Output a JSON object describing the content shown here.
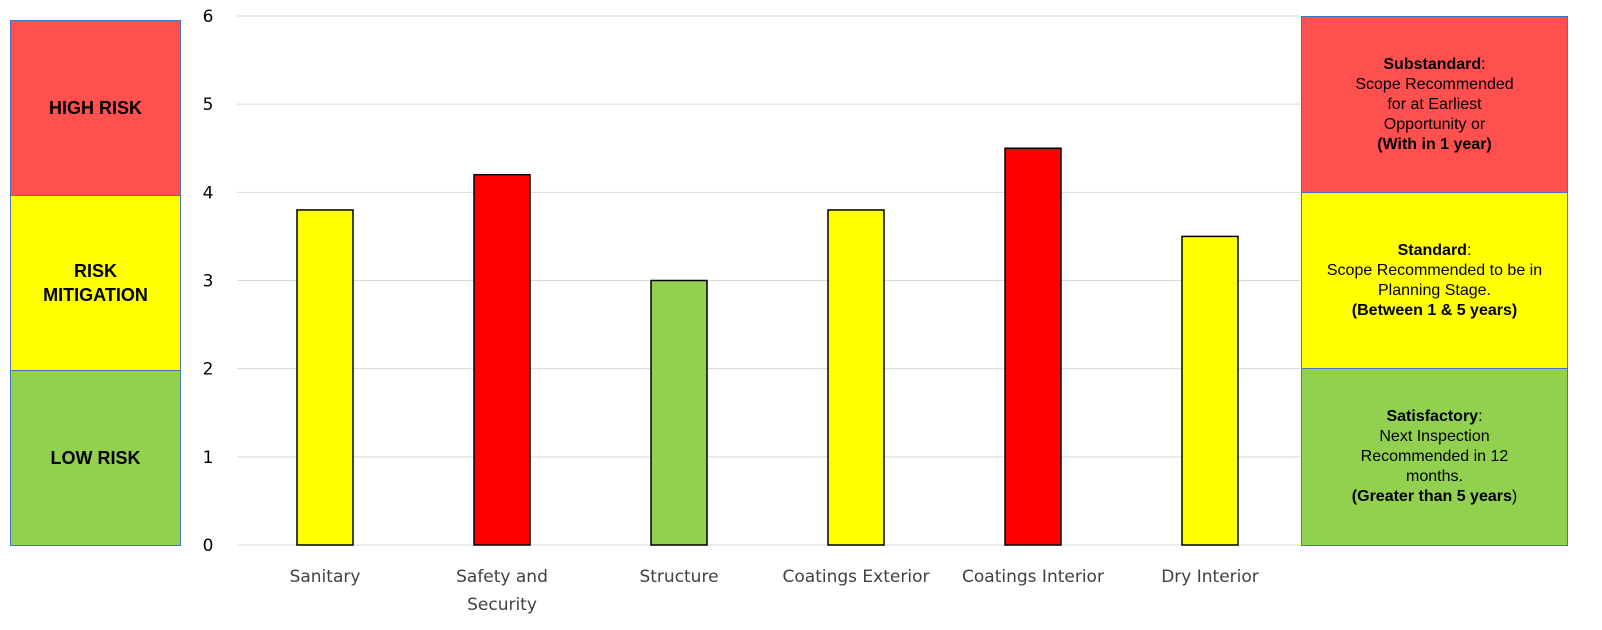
{
  "risk_bands": {
    "high": {
      "label": "HIGH RISK",
      "color": "#ff5050"
    },
    "mitigation": {
      "label": "RISK MITIGATION",
      "color": "#ffff00"
    },
    "low": {
      "label": "LOW RISK",
      "color": "#92d050"
    }
  },
  "legend": [
    {
      "title": "Substandard",
      "text": "Scope Recommended for at Earliest Opportunity or",
      "note": "(With in 1 year)",
      "color": "#ff5050"
    },
    {
      "title": "Standard",
      "text": "Scope Recommended to be in Planning Stage.",
      "note": "(Between 1 & 5 years)",
      "color": "#ffff00"
    },
    {
      "title": "Satisfactory",
      "text": "Next Inspection Recommended in 12 months.",
      "note": "(Greater than 5 years",
      "color": "#92d050"
    }
  ],
  "chart_data": {
    "type": "bar",
    "categories": [
      "Sanitary",
      "Safety and Security",
      "Structure",
      "Coatings Exterior",
      "Coatings Interior",
      "Dry Interior"
    ],
    "values": [
      3.8,
      4.2,
      3.0,
      3.8,
      4.5,
      3.5
    ],
    "bar_colors": [
      "#ffff00",
      "#ff0000",
      "#92d050",
      "#ffff00",
      "#ff0000",
      "#ffff00"
    ],
    "ylim": [
      0,
      6
    ],
    "yticks": [
      0,
      1,
      2,
      3,
      4,
      5,
      6
    ],
    "grid": true,
    "title": "",
    "xlabel": "",
    "ylabel": ""
  }
}
